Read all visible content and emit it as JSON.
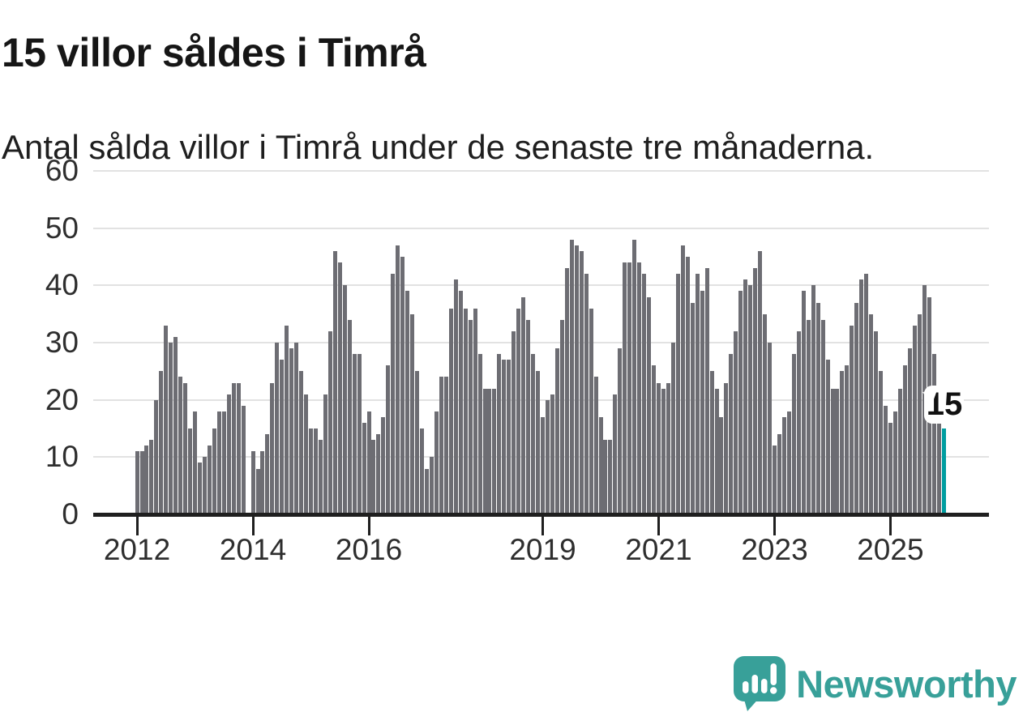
{
  "header": {
    "title": "15 villor såldes i Timrå",
    "subtitle": "Antal sålda villor i Timrå under de senaste tre månaderna."
  },
  "chart_data": {
    "type": "bar",
    "title": "15 villor såldes i Timrå",
    "subtitle": "Antal sålda villor i Timrå under de senaste tre månaderna.",
    "start_year": 2012,
    "frequency": "monthly",
    "values": [
      11,
      11,
      12,
      13,
      20,
      25,
      33,
      30,
      31,
      24,
      23,
      15,
      18,
      9,
      10,
      12,
      15,
      18,
      18,
      21,
      23,
      23,
      19,
      0,
      11,
      8,
      11,
      14,
      23,
      30,
      27,
      33,
      29,
      30,
      25,
      21,
      15,
      15,
      13,
      21,
      32,
      46,
      44,
      40,
      34,
      28,
      28,
      16,
      18,
      13,
      14,
      17,
      26,
      42,
      47,
      45,
      39,
      35,
      25,
      15,
      8,
      10,
      18,
      24,
      24,
      36,
      41,
      39,
      36,
      34,
      36,
      28,
      22,
      22,
      22,
      28,
      27,
      27,
      32,
      36,
      38,
      34,
      28,
      25,
      17,
      20,
      21,
      29,
      34,
      43,
      48,
      47,
      46,
      42,
      36,
      24,
      17,
      13,
      13,
      21,
      29,
      44,
      44,
      48,
      44,
      42,
      38,
      26,
      23,
      22,
      23,
      30,
      42,
      47,
      45,
      37,
      42,
      39,
      43,
      25,
      22,
      17,
      23,
      28,
      32,
      39,
      41,
      40,
      43,
      46,
      35,
      30,
      12,
      14,
      17,
      18,
      28,
      32,
      39,
      34,
      40,
      37,
      34,
      27,
      22,
      22,
      25,
      26,
      33,
      37,
      41,
      42,
      35,
      32,
      25,
      19,
      16,
      18,
      22,
      26,
      29,
      33,
      35,
      40,
      38,
      28,
      17,
      15
    ],
    "highlight": {
      "position": "last",
      "value": 15,
      "label": "15",
      "color": "#009da0"
    },
    "bar_color": "#6d6d73",
    "grid": true,
    "ylim": [
      0,
      60
    ],
    "y_ticks": [
      0,
      10,
      20,
      30,
      40,
      50,
      60
    ],
    "x_tick_labels": [
      "2012",
      "2014",
      "2016",
      "2019",
      "2021",
      "2023",
      "2025"
    ]
  },
  "footer": {
    "brand": "Newsworthy",
    "brand_color": "#38a099",
    "logo_icon": "speech-bubble-bar-chart-icon"
  }
}
